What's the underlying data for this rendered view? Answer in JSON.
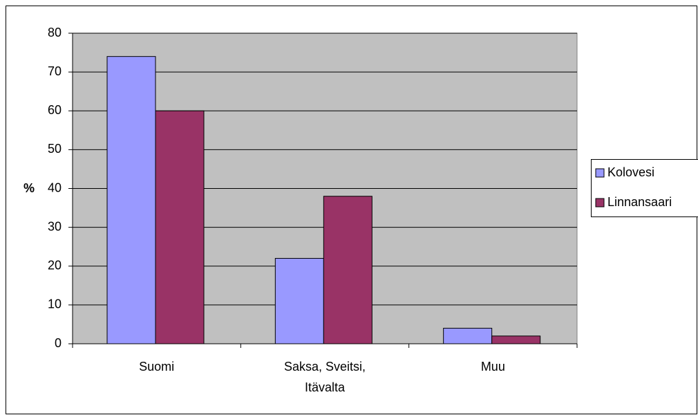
{
  "chart_data": {
    "type": "bar",
    "y_label": "%",
    "categories": [
      "Suomi",
      "Saksa, Sveitsi, Itävalta",
      "Muu"
    ],
    "series": [
      {
        "name": "Kolovesi",
        "color": "#9999ff",
        "values": [
          74,
          22,
          4
        ]
      },
      {
        "name": "Linnansaari",
        "color": "#993366",
        "values": [
          60,
          38,
          2
        ]
      }
    ],
    "ylim": [
      0,
      80
    ],
    "yticks": [
      0,
      10,
      20,
      30,
      40,
      50,
      60,
      70,
      80
    ],
    "grid": true,
    "legend": "right"
  }
}
